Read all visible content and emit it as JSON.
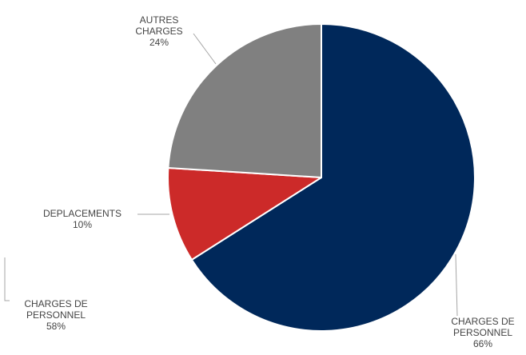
{
  "chart_data": {
    "type": "pie",
    "slices": [
      {
        "label_lines": [
          "CHARGES DE",
          "PERSONNEL"
        ],
        "value": 66,
        "value_text": "66%",
        "color": "#00285a"
      },
      {
        "label_lines": [
          "DEPLACEMENTS"
        ],
        "value": 10,
        "value_text": "10%",
        "color": "#cc2a29"
      },
      {
        "label_lines": [
          "AUTRES",
          "CHARGES"
        ],
        "value": 24,
        "value_text": "24%",
        "color": "#808080"
      }
    ],
    "start_angle_deg": 0,
    "direction": "clockwise",
    "slice_border_color": "#ffffff",
    "leader_line_color": "#a6a6a6"
  },
  "outside_fragments": [
    {
      "label_lines": [
        "CHARGES DE",
        "PERSONNEL"
      ],
      "value_text": "58%"
    }
  ]
}
